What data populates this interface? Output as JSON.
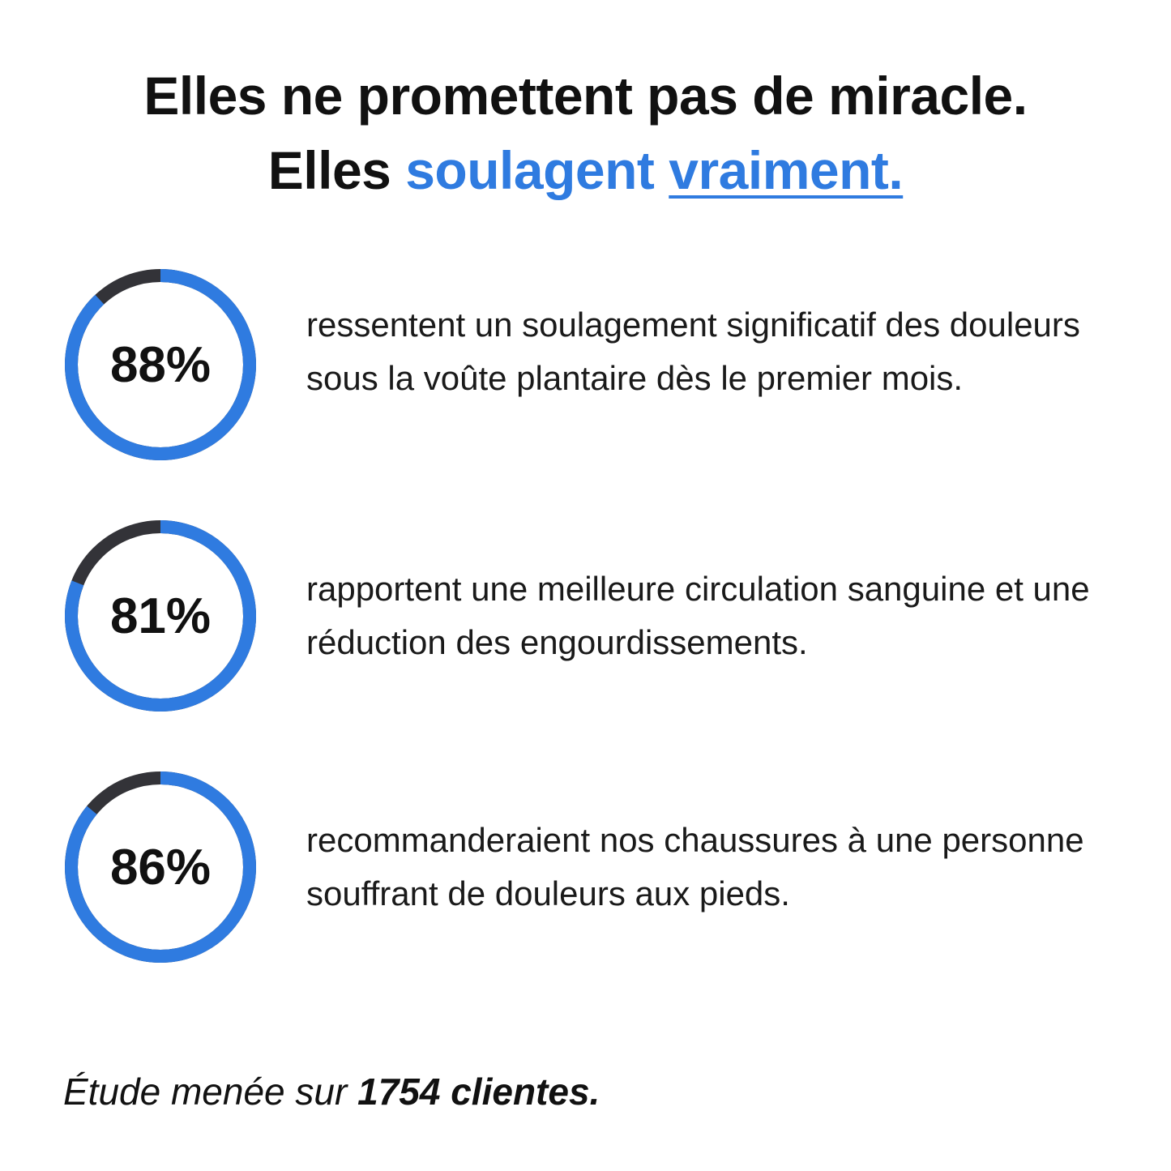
{
  "headline": {
    "line1": "Elles ne promettent pas de miracle.",
    "line2_prefix": "Elles",
    "line2_accent": "soulagent",
    "line2_underlined": "vraiment."
  },
  "colors": {
    "accent": "#2f7be0",
    "ring_track": "#333338",
    "text": "#111111"
  },
  "stats": [
    {
      "percent": 88,
      "label": "88%",
      "text": "ressentent un soulagement significatif des douleurs sous la voûte plantaire dès le premier mois."
    },
    {
      "percent": 81,
      "label": "81%",
      "text": "rapportent une meilleure circulation sanguine et une réduction des engourdissements."
    },
    {
      "percent": 86,
      "label": "86%",
      "text": "recommanderaient nos chaussures à une personne souffrant de douleurs aux pieds."
    }
  ],
  "footer": {
    "prefix": "Étude menée sur",
    "emphasis": "1754 clientes."
  }
}
